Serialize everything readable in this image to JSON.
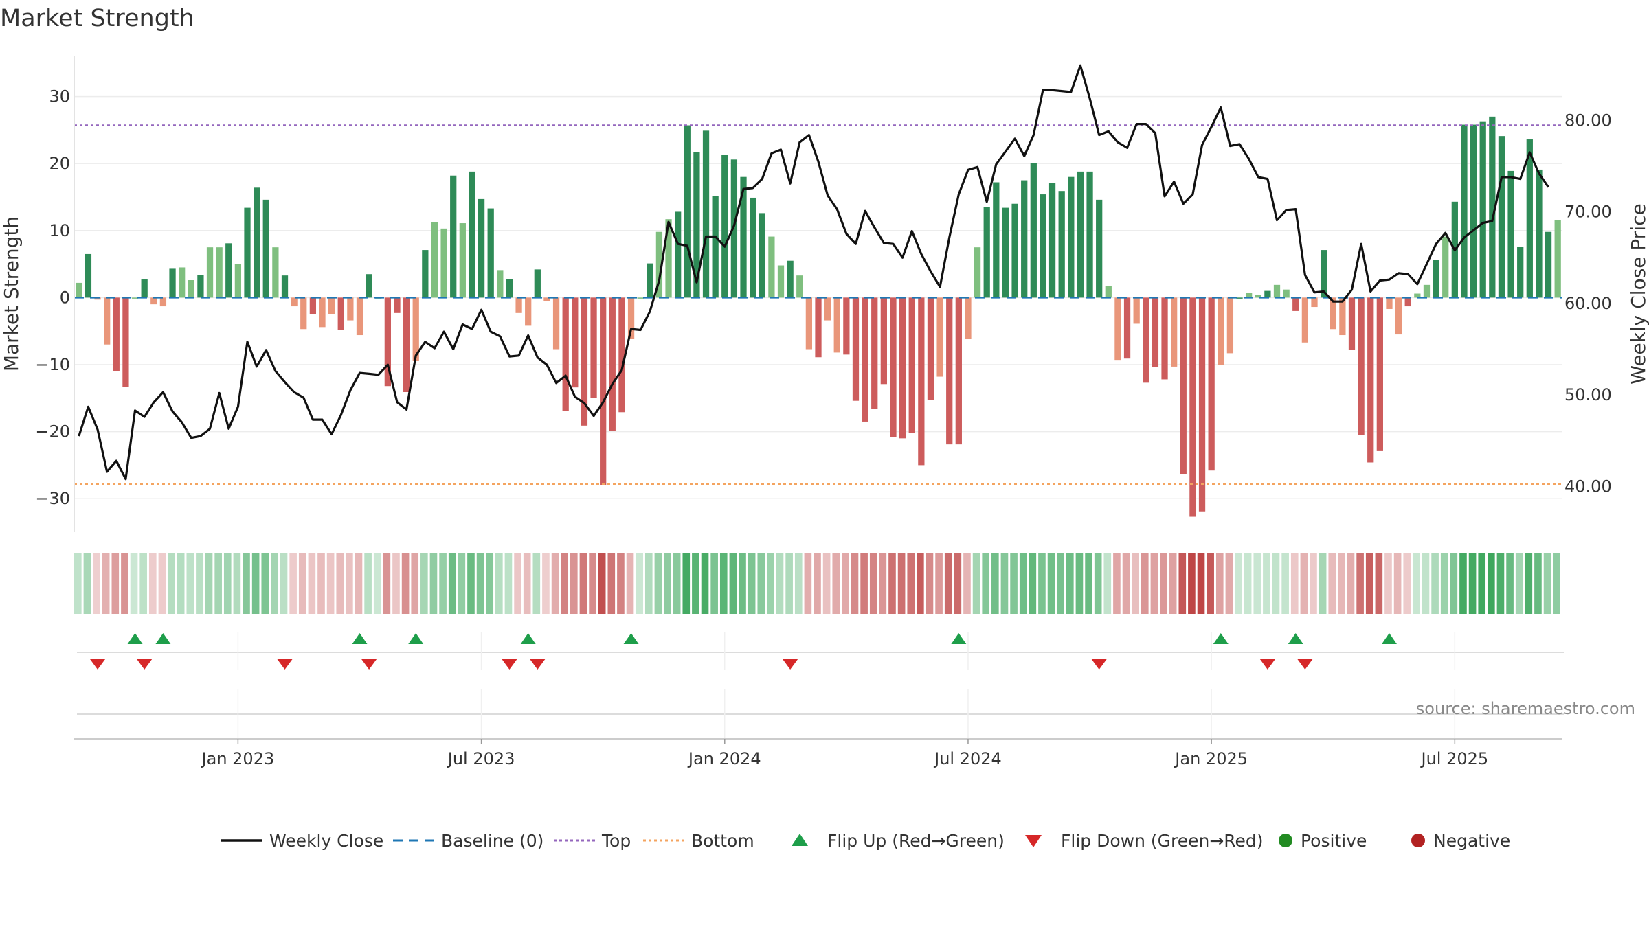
{
  "chart_data": {
    "type": "bar+line",
    "title": "Market Strength",
    "ylabel_left": "Market Strength",
    "ylabel_right": "Weekly Close Price",
    "ylim_left": [
      -35,
      36
    ],
    "ylim_right": [
      35,
      87
    ],
    "left_ticks": [
      30,
      20,
      10,
      0,
      -10,
      -20,
      -30
    ],
    "left_tick_labels": [
      "30",
      "20",
      "10",
      "0",
      "−10",
      "−20",
      "−30"
    ],
    "right_ticks": [
      80,
      70,
      60,
      50,
      40
    ],
    "right_tick_labels": [
      "80.00",
      "70.00",
      "60.00",
      "50.00",
      "40.00"
    ],
    "top_line": 25.7,
    "bottom_line": -27.8,
    "baseline": 0,
    "x_tick_labels": [
      "Jan 2023",
      "Jul 2023",
      "Jan 2024",
      "Jul 2024",
      "Jan 2025",
      "Jul 2025"
    ],
    "x_tick_weeks": [
      17,
      43,
      69,
      95,
      121,
      147
    ],
    "strength": [
      2.2,
      6.5,
      -0.3,
      -7,
      -11,
      -13.3,
      0,
      2.7,
      -1,
      -1.3,
      4.3,
      4.5,
      2.6,
      3.4,
      7.5,
      7.5,
      8.1,
      5,
      13.4,
      16.4,
      14.6,
      7.5,
      3.3,
      -1.3,
      -4.7,
      -2.5,
      -4.4,
      -2.5,
      -4.8,
      -3.4,
      -5.6,
      3.5,
      0,
      -13.2,
      -2.3,
      -14.1,
      -9.4,
      7.1,
      11.3,
      10.3,
      18.2,
      11.1,
      18.8,
      14.7,
      13.3,
      4.1,
      2.8,
      -2.3,
      -4.2,
      4.2,
      -0.5,
      -7.7,
      -16.9,
      -13.4,
      -19.1,
      -15,
      -28,
      -19.9,
      -17.1,
      -6.2,
      0,
      5.1,
      9.8,
      11.7,
      12.8,
      25.7,
      21.7,
      24.9,
      15.2,
      21.3,
      20.6,
      18,
      14.9,
      12.6,
      9.1,
      4.8,
      5.5,
      3.3,
      -7.7,
      -8.9,
      -3.4,
      -8.2,
      -8.5,
      -15.4,
      -18.5,
      -16.6,
      -12.9,
      -20.8,
      -21,
      -20.2,
      -25,
      -15.3,
      -11.8,
      -21.9,
      -21.9,
      -6.2,
      7.5,
      13.5,
      17.2,
      13.4,
      14,
      17.5,
      20.1,
      15.4,
      17.1,
      15.9,
      18,
      18.8,
      18.8,
      14.6,
      1.7,
      -9.3,
      -9.1,
      -3.9,
      -12.7,
      -10.4,
      -12.2,
      -10.3,
      -26.3,
      -32.7,
      -31.9,
      -25.8,
      -10.1,
      -8.3,
      0,
      0.7,
      0.4,
      1,
      1.9,
      1.2,
      -2,
      -6.7,
      -1.4,
      7.1,
      -4.7,
      -5.6,
      -7.8,
      -20.5,
      -24.6,
      -22.9,
      -1.7,
      -5.5,
      -1.3,
      0.6,
      1.9,
      5.6,
      9.1,
      14.3,
      25.8,
      25.8,
      26.3,
      27,
      24.1,
      18.9,
      7.6,
      23.6,
      19.1,
      9.8,
      11.6
    ],
    "close": [
      45.5,
      48.7,
      46.2,
      41.6,
      42.8,
      40.8,
      48.3,
      47.6,
      49.2,
      50.3,
      48.2,
      47,
      45.3,
      45.5,
      46.3,
      50.2,
      46.3,
      48.7,
      55.8,
      53.1,
      54.9,
      52.6,
      51.4,
      50.3,
      49.7,
      47.3,
      47.3,
      45.7,
      47.8,
      50.5,
      52.4,
      52.3,
      52.2,
      53.3,
      49.2,
      48.4,
      54.3,
      55.8,
      55.1,
      56.9,
      55,
      57.7,
      57.2,
      59.3,
      56.9,
      56.4,
      54.2,
      54.3,
      56.5,
      54.1,
      53.3,
      51.3,
      52.1,
      49.8,
      49.1,
      47.7,
      49.2,
      51.2,
      52.7,
      57.2,
      57.1,
      59.1,
      62.5,
      68.9,
      66.5,
      66.3,
      62.3,
      67.3,
      67.3,
      66.2,
      68.5,
      72.5,
      72.6,
      73.6,
      76.4,
      76.8,
      73.1,
      77.6,
      78.4,
      75.5,
      71.8,
      70.3,
      67.6,
      66.5,
      70.1,
      68.3,
      66.6,
      66.5,
      65,
      67.9,
      65.4,
      63.5,
      61.8,
      67.2,
      71.9,
      74.6,
      74.9,
      71.1,
      75.2,
      76.6,
      78,
      76.1,
      78.4,
      83.3,
      83.3,
      83.2,
      83.1,
      86,
      82.4,
      78.4,
      78.8,
      77.6,
      77,
      79.6,
      79.6,
      78.6,
      71.7,
      73.3,
      70.9,
      71.9,
      77.3,
      79.3,
      81.4,
      77.2,
      77.4,
      75.8,
      73.8,
      73.6,
      69.1,
      70.2,
      70.3,
      63.1,
      61.2,
      61.3,
      60.2,
      60.2,
      61.5,
      66.5,
      61.3,
      62.5,
      62.6,
      63.3,
      63.2,
      62.1,
      64.3,
      66.5,
      67.7,
      65.8,
      67.2,
      68,
      68.8,
      69,
      73.8,
      73.8,
      73.6,
      76.5,
      74.2,
      72.7
    ]
  },
  "flip_up_weeks": [
    6,
    9,
    30,
    36,
    48,
    59,
    94,
    122,
    130,
    140
  ],
  "flip_down_weeks": [
    2,
    7,
    22,
    31,
    46,
    49,
    76,
    109,
    127,
    131
  ],
  "source_text": "source: sharemaestro.com",
  "legend": [
    {
      "label": "Weekly Close",
      "marker": "line"
    },
    {
      "label": "Baseline (0)",
      "marker": "dash"
    },
    {
      "label": "Top",
      "marker": "dot-purple"
    },
    {
      "label": "Bottom",
      "marker": "dot-orange"
    },
    {
      "label": "Flip Up (Red→Green)",
      "marker": "triangle-up"
    },
    {
      "label": "Flip Down (Green→Red)",
      "marker": "triangle-down"
    },
    {
      "label": "Positive",
      "marker": "circle-green"
    },
    {
      "label": "Negative",
      "marker": "circle-red"
    }
  ],
  "colors": {
    "strong_green": "#2e8b57",
    "light_green": "#7fbf7f",
    "strong_red": "#cd5c5c",
    "light_red": "#e9967a",
    "close_line": "#111111",
    "baseline": "#1f77b4",
    "top": "#9467bd",
    "bottom": "#f4a460",
    "flip_up": "#1e9e4a",
    "flip_down": "#d62728",
    "positive": "#228b22",
    "negative": "#b22222"
  }
}
